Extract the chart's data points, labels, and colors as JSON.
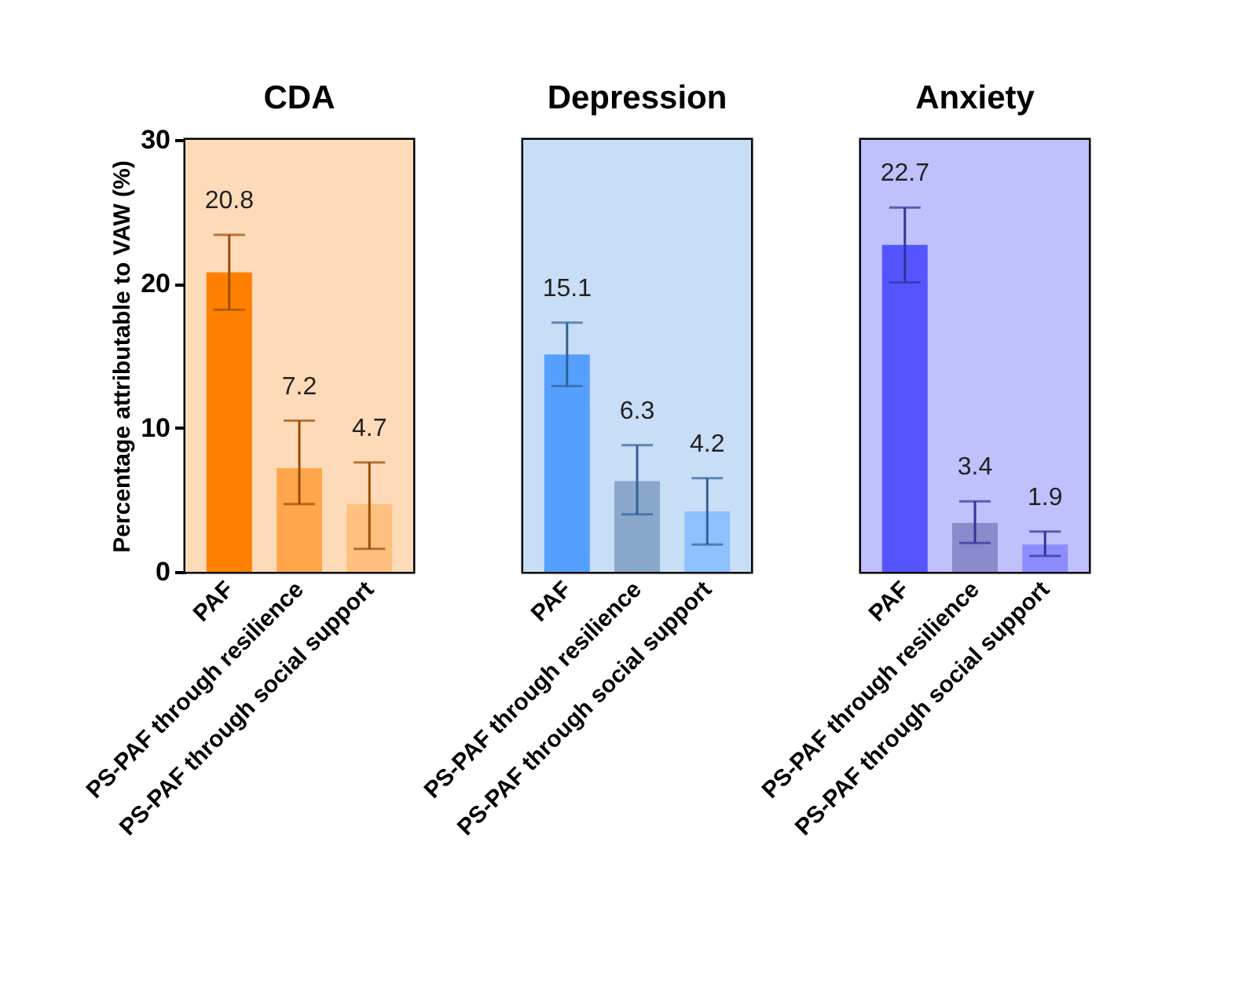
{
  "chart_data": [
    {
      "type": "bar",
      "title": "CDA",
      "ylabel": "Percentage attributable to VAW (%)",
      "categories": [
        "PAF",
        "PS-PAF through resilience",
        "PS-PAF through social support"
      ],
      "values": [
        20.8,
        7.2,
        4.7
      ],
      "colors": [
        "#ff8000",
        "#ffa64d",
        "#ffc080"
      ],
      "errors": [
        [
          18.2,
          23.4
        ],
        [
          4.7,
          10.5
        ],
        [
          1.6,
          7.6
        ]
      ],
      "data_labels": true,
      "ylim": [
        0,
        30
      ],
      "yticks": [
        0,
        10,
        20,
        30
      ],
      "bands": [
        {
          "axis": "y",
          "from": 0,
          "to": 30,
          "color": "#fddbb8"
        }
      ]
    },
    {
      "type": "bar",
      "title": "Depression",
      "categories": [
        "PAF",
        "PS-PAF through resilience",
        "PS-PAF through social support"
      ],
      "values": [
        15.1,
        6.3,
        4.2
      ],
      "colors": [
        "#55a0ff",
        "#8aa8cc",
        "#8fc0ff"
      ],
      "errors": [
        [
          12.9,
          17.3
        ],
        [
          4.0,
          8.8
        ],
        [
          1.9,
          6.5
        ]
      ],
      "data_labels": true,
      "ylim": [
        0,
        30
      ],
      "tick_labels": "x",
      "bands": [
        {
          "axis": "y",
          "from": 0,
          "to": 30,
          "color": "#c8def6"
        }
      ]
    },
    {
      "type": "bar",
      "title": "Anxiety",
      "categories": [
        "PAF",
        "PS-PAF through resilience",
        "PS-PAF through social support"
      ],
      "values": [
        22.7,
        3.4,
        1.9
      ],
      "colors": [
        "#5555ff",
        "#8a8acc",
        "#8c8cff"
      ],
      "errors": [
        [
          20.1,
          25.3
        ],
        [
          2.0,
          4.9
        ],
        [
          1.1,
          2.8
        ]
      ],
      "data_labels": true,
      "ylim": [
        0,
        30
      ],
      "tick_labels": "x",
      "bands": [
        {
          "axis": "y",
          "from": 0,
          "to": 30,
          "color": "#c0c0fc"
        }
      ]
    }
  ]
}
